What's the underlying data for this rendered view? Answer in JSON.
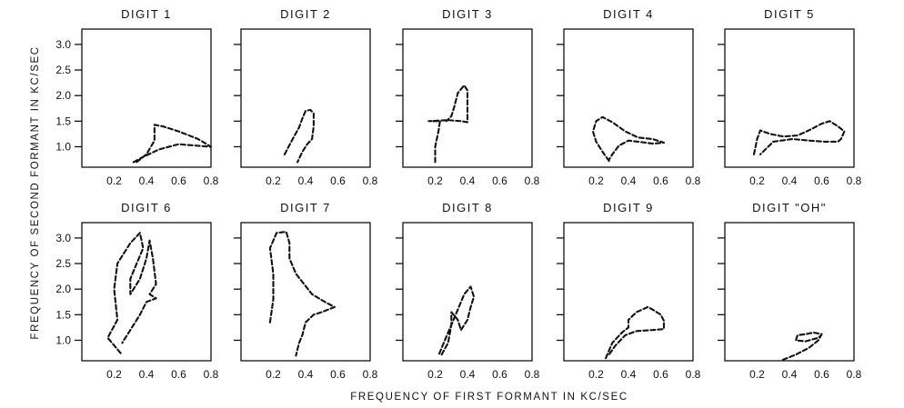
{
  "chart_data": {
    "type": "line",
    "x_axis_label": "FREQUENCY OF FIRST FORMANT IN KC/SEC",
    "y_axis_label": "FREQUENCY OF SECOND FORMANT IN KC/SEC",
    "xlim": [
      0,
      0.8
    ],
    "ylim": [
      0.6,
      3.3
    ],
    "x_ticks": [
      "0.2",
      "0.4",
      "0.6",
      "0.8"
    ],
    "y_ticks": [
      "1.0",
      "1.5",
      "2.0",
      "2.5",
      "3.0"
    ],
    "grid": false,
    "legend": "none",
    "panels": [
      {
        "title": "DIGIT 1",
        "points": [
          [
            0.32,
            0.7
          ],
          [
            0.38,
            0.8
          ],
          [
            0.48,
            0.95
          ],
          [
            0.6,
            1.05
          ],
          [
            0.72,
            1.02
          ],
          [
            0.8,
            1.0
          ],
          [
            0.72,
            1.15
          ],
          [
            0.6,
            1.3
          ],
          [
            0.5,
            1.4
          ],
          [
            0.45,
            1.43
          ],
          [
            0.45,
            1.28
          ],
          [
            0.45,
            1.12
          ],
          [
            0.4,
            0.85
          ],
          [
            0.34,
            0.7
          ]
        ]
      },
      {
        "title": "DIGIT 2",
        "points": [
          [
            0.27,
            0.85
          ],
          [
            0.32,
            1.15
          ],
          [
            0.36,
            1.38
          ],
          [
            0.38,
            1.55
          ],
          [
            0.4,
            1.7
          ],
          [
            0.43,
            1.72
          ],
          [
            0.45,
            1.65
          ],
          [
            0.45,
            1.4
          ],
          [
            0.44,
            1.15
          ],
          [
            0.41,
            1.05
          ],
          [
            0.38,
            0.9
          ],
          [
            0.35,
            0.7
          ]
        ]
      },
      {
        "title": "DIGIT 3",
        "points": [
          [
            0.2,
            0.7
          ],
          [
            0.2,
            1.0
          ],
          [
            0.22,
            1.3
          ],
          [
            0.23,
            1.5
          ],
          [
            0.16,
            1.5
          ],
          [
            0.28,
            1.52
          ],
          [
            0.36,
            1.5
          ],
          [
            0.4,
            1.48
          ],
          [
            0.4,
            1.8
          ],
          [
            0.4,
            2.1
          ],
          [
            0.38,
            2.2
          ],
          [
            0.34,
            2.05
          ],
          [
            0.32,
            1.8
          ],
          [
            0.3,
            1.6
          ],
          [
            0.27,
            1.5
          ]
        ]
      },
      {
        "title": "DIGIT 4",
        "points": [
          [
            0.28,
            0.72
          ],
          [
            0.24,
            0.9
          ],
          [
            0.2,
            1.1
          ],
          [
            0.18,
            1.3
          ],
          [
            0.2,
            1.5
          ],
          [
            0.24,
            1.58
          ],
          [
            0.3,
            1.48
          ],
          [
            0.38,
            1.3
          ],
          [
            0.46,
            1.18
          ],
          [
            0.55,
            1.15
          ],
          [
            0.62,
            1.08
          ],
          [
            0.55,
            1.06
          ],
          [
            0.46,
            1.1
          ],
          [
            0.4,
            1.12
          ],
          [
            0.34,
            1.02
          ],
          [
            0.3,
            0.85
          ],
          [
            0.28,
            0.75
          ]
        ]
      },
      {
        "title": "DIGIT 5",
        "points": [
          [
            0.18,
            0.85
          ],
          [
            0.2,
            1.15
          ],
          [
            0.22,
            1.32
          ],
          [
            0.28,
            1.25
          ],
          [
            0.36,
            1.2
          ],
          [
            0.45,
            1.22
          ],
          [
            0.52,
            1.32
          ],
          [
            0.6,
            1.45
          ],
          [
            0.65,
            1.5
          ],
          [
            0.7,
            1.4
          ],
          [
            0.74,
            1.3
          ],
          [
            0.72,
            1.15
          ],
          [
            0.7,
            1.1
          ],
          [
            0.62,
            1.1
          ],
          [
            0.52,
            1.12
          ],
          [
            0.42,
            1.15
          ],
          [
            0.3,
            1.1
          ],
          [
            0.22,
            0.85
          ]
        ]
      },
      {
        "title": "DIGIT 6",
        "points": [
          [
            0.24,
            0.75
          ],
          [
            0.2,
            0.9
          ],
          [
            0.16,
            1.05
          ],
          [
            0.22,
            1.4
          ],
          [
            0.2,
            2.0
          ],
          [
            0.22,
            2.5
          ],
          [
            0.3,
            2.9
          ],
          [
            0.36,
            3.1
          ],
          [
            0.38,
            2.8
          ],
          [
            0.34,
            2.5
          ],
          [
            0.3,
            2.2
          ],
          [
            0.3,
            1.9
          ],
          [
            0.36,
            2.2
          ],
          [
            0.4,
            2.6
          ],
          [
            0.42,
            2.95
          ],
          [
            0.44,
            2.6
          ],
          [
            0.46,
            2.1
          ],
          [
            0.42,
            1.9
          ],
          [
            0.46,
            1.82
          ],
          [
            0.4,
            1.75
          ],
          [
            0.36,
            1.5
          ],
          [
            0.3,
            1.2
          ],
          [
            0.25,
            0.95
          ]
        ]
      },
      {
        "title": "DIGIT 7",
        "points": [
          [
            0.18,
            1.35
          ],
          [
            0.2,
            1.8
          ],
          [
            0.2,
            2.3
          ],
          [
            0.18,
            2.8
          ],
          [
            0.22,
            3.1
          ],
          [
            0.28,
            3.12
          ],
          [
            0.3,
            2.9
          ],
          [
            0.3,
            2.6
          ],
          [
            0.34,
            2.3
          ],
          [
            0.44,
            1.9
          ],
          [
            0.52,
            1.75
          ],
          [
            0.58,
            1.65
          ],
          [
            0.5,
            1.55
          ],
          [
            0.45,
            1.5
          ],
          [
            0.4,
            1.35
          ],
          [
            0.38,
            1.1
          ],
          [
            0.36,
            0.95
          ],
          [
            0.34,
            0.7
          ]
        ]
      },
      {
        "title": "DIGIT 8",
        "points": [
          [
            0.24,
            0.72
          ],
          [
            0.28,
            0.95
          ],
          [
            0.3,
            1.3
          ],
          [
            0.3,
            1.55
          ],
          [
            0.34,
            1.4
          ],
          [
            0.36,
            1.2
          ],
          [
            0.4,
            1.4
          ],
          [
            0.42,
            1.65
          ],
          [
            0.44,
            1.85
          ],
          [
            0.42,
            2.05
          ],
          [
            0.38,
            1.9
          ],
          [
            0.34,
            1.6
          ],
          [
            0.3,
            1.3
          ],
          [
            0.26,
            1.0
          ],
          [
            0.22,
            0.7
          ]
        ]
      },
      {
        "title": "DIGIT 9",
        "points": [
          [
            0.26,
            0.65
          ],
          [
            0.28,
            0.8
          ],
          [
            0.3,
            0.95
          ],
          [
            0.36,
            1.15
          ],
          [
            0.4,
            1.25
          ],
          [
            0.4,
            1.4
          ],
          [
            0.45,
            1.55
          ],
          [
            0.52,
            1.65
          ],
          [
            0.55,
            1.6
          ],
          [
            0.6,
            1.5
          ],
          [
            0.62,
            1.38
          ],
          [
            0.62,
            1.22
          ],
          [
            0.55,
            1.2
          ],
          [
            0.45,
            1.18
          ],
          [
            0.38,
            1.1
          ],
          [
            0.32,
            0.9
          ],
          [
            0.28,
            0.72
          ]
        ]
      },
      {
        "title": "DIGIT \"OH\"",
        "points": [
          [
            0.36,
            0.62
          ],
          [
            0.44,
            0.72
          ],
          [
            0.52,
            0.85
          ],
          [
            0.58,
            1.0
          ],
          [
            0.6,
            1.12
          ],
          [
            0.55,
            1.15
          ],
          [
            0.5,
            1.12
          ],
          [
            0.45,
            1.1
          ],
          [
            0.44,
            1.0
          ],
          [
            0.5,
            0.98
          ],
          [
            0.57,
            1.04
          ],
          [
            0.59,
            1.08
          ]
        ]
      }
    ]
  }
}
